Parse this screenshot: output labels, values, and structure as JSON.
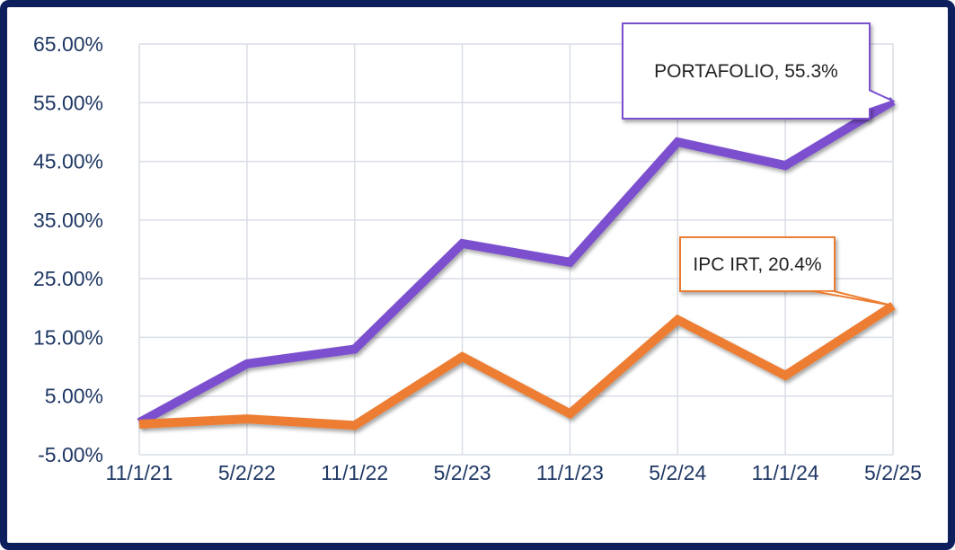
{
  "chart_data": {
    "type": "line",
    "categories": [
      "11/1/21",
      "5/2/22",
      "11/1/22",
      "5/2/23",
      "11/1/23",
      "5/2/24",
      "11/1/24",
      "5/2/25"
    ],
    "series": [
      {
        "name": "PORTAFOLIO",
        "color": "#7b4fcf",
        "values": [
          0.5,
          10.5,
          13,
          31,
          27.8,
          48.3,
          44.3,
          55.3
        ]
      },
      {
        "name": "IPC IRT",
        "color": "#ed7d31",
        "values": [
          0.2,
          1.1,
          0,
          11.7,
          2,
          18,
          8.5,
          20.4
        ]
      }
    ],
    "annotations": [
      "PORTAFOLIO, 55.3%",
      "IPC IRT, 20.4%"
    ],
    "ylim": [
      -5,
      65
    ],
    "yticks": [
      {
        "value": -5,
        "label": "-5.00%"
      },
      {
        "value": 5,
        "label": "5.00%"
      },
      {
        "value": 15,
        "label": "15.00%"
      },
      {
        "value": 25,
        "label": "25.00%"
      },
      {
        "value": 35,
        "label": "35.00%"
      },
      {
        "value": 45,
        "label": "45.00%"
      },
      {
        "value": 55,
        "label": "55.00%"
      },
      {
        "value": 65,
        "label": "65.00%"
      }
    ],
    "grid": true
  }
}
